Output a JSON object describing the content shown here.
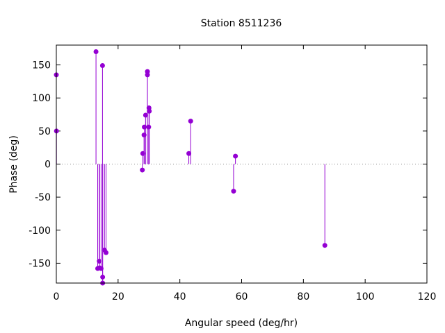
{
  "chart_data": {
    "type": "scatter",
    "style": "impulses-with-points",
    "title": "Station 8511236",
    "xlabel": "Angular speed (deg/hr)",
    "ylabel": "Phase (deg)",
    "xlim": [
      0,
      120
    ],
    "ylim": [
      -180,
      180
    ],
    "xticks": [
      0,
      20,
      40,
      60,
      80,
      100,
      120
    ],
    "yticks": [
      -150,
      -100,
      -50,
      0,
      50,
      100,
      150
    ],
    "zero_line": "dotted",
    "grid": false,
    "color": "#9400d3",
    "points": [
      {
        "x": 0.0,
        "y": 135
      },
      {
        "x": 0.04,
        "y": 50
      },
      {
        "x": 12.85,
        "y": 170
      },
      {
        "x": 13.4,
        "y": -158
      },
      {
        "x": 13.9,
        "y": -147
      },
      {
        "x": 14.0,
        "y": -157
      },
      {
        "x": 14.5,
        "y": -158
      },
      {
        "x": 14.95,
        "y": 149
      },
      {
        "x": 15.0,
        "y": -171
      },
      {
        "x": 15.0,
        "y": -180
      },
      {
        "x": 15.6,
        "y": -130
      },
      {
        "x": 16.1,
        "y": -134
      },
      {
        "x": 27.85,
        "y": -9
      },
      {
        "x": 28.0,
        "y": 16
      },
      {
        "x": 28.4,
        "y": 44
      },
      {
        "x": 28.5,
        "y": 56
      },
      {
        "x": 28.9,
        "y": 74
      },
      {
        "x": 29.5,
        "y": 140
      },
      {
        "x": 29.5,
        "y": 135
      },
      {
        "x": 29.9,
        "y": 56
      },
      {
        "x": 30.0,
        "y": 85
      },
      {
        "x": 30.1,
        "y": 80
      },
      {
        "x": 42.9,
        "y": 16
      },
      {
        "x": 43.5,
        "y": 65
      },
      {
        "x": 57.4,
        "y": -41
      },
      {
        "x": 58.0,
        "y": 12
      },
      {
        "x": 86.95,
        "y": -123
      }
    ]
  }
}
